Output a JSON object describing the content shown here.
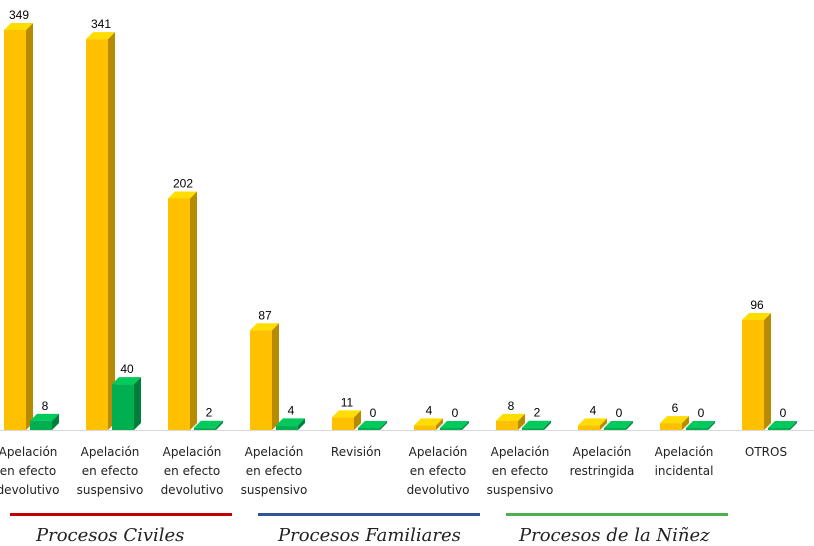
{
  "chart_data": {
    "type": "bar",
    "categories": [
      [
        "Apelación",
        "en efecto",
        "devolutivo"
      ],
      [
        "Apelación",
        "en efecto",
        "suspensivo"
      ],
      [
        "Apelación",
        "en efecto",
        "devolutivo"
      ],
      [
        "Apelación",
        "en efecto",
        "suspensivo"
      ],
      [
        "Revisión"
      ],
      [
        "Apelación",
        "en efecto",
        "devolutivo"
      ],
      [
        "Apelación",
        "en efecto",
        "suspensivo"
      ],
      [
        "Apelación",
        "restringida"
      ],
      [
        "Apelación",
        "incidental"
      ],
      [
        "OTROS"
      ]
    ],
    "series": [
      {
        "color": "#FFC000",
        "values": [
          349,
          341,
          202,
          87,
          11,
          4,
          8,
          4,
          6,
          96
        ]
      },
      {
        "color": "#00B050",
        "values": [
          8,
          40,
          2,
          4,
          0,
          0,
          2,
          0,
          0,
          0
        ]
      }
    ],
    "groups": [
      {
        "label": "Procesos Civiles",
        "color": "#C00000"
      },
      {
        "label": "Procesos Familiares",
        "color": "#2F5597"
      },
      {
        "label": "Procesos de la Niñez",
        "color": "#4CAF50"
      }
    ],
    "ylim": [
      0,
      349
    ],
    "grid": false,
    "legend": "none"
  }
}
